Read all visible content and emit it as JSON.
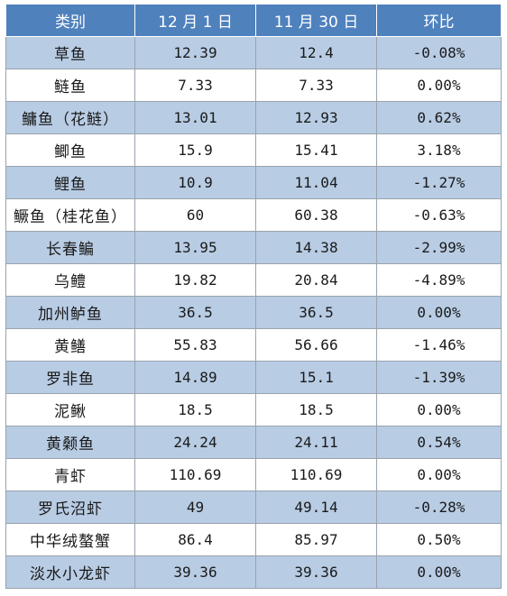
{
  "table": {
    "headers": [
      "类别",
      "12 月 1 日",
      "11 月 30 日",
      "环比"
    ],
    "rows": [
      [
        "草鱼",
        "12.39",
        "12.4",
        "-0.08%"
      ],
      [
        "鲢鱼",
        "7.33",
        "7.33",
        "0.00%"
      ],
      [
        "鳙鱼（花鲢）",
        "13.01",
        "12.93",
        "0.62%"
      ],
      [
        "鲫鱼",
        "15.9",
        "15.41",
        "3.18%"
      ],
      [
        "鲤鱼",
        "10.9",
        "11.04",
        "-1.27%"
      ],
      [
        "鳜鱼（桂花鱼）",
        "60",
        "60.38",
        "-0.63%"
      ],
      [
        "长春鳊",
        "13.95",
        "14.38",
        "-2.99%"
      ],
      [
        "乌鳢",
        "19.82",
        "20.84",
        "-4.89%"
      ],
      [
        "加州鲈鱼",
        "36.5",
        "36.5",
        "0.00%"
      ],
      [
        "黄鳝",
        "55.83",
        "56.66",
        "-1.46%"
      ],
      [
        "罗非鱼",
        "14.89",
        "15.1",
        "-1.39%"
      ],
      [
        "泥鳅",
        "18.5",
        "18.5",
        "0.00%"
      ],
      [
        "黄颡鱼",
        "24.24",
        "24.11",
        "0.54%"
      ],
      [
        "青虾",
        "110.69",
        "110.69",
        "0.00%"
      ],
      [
        "罗氏沼虾",
        "49",
        "49.14",
        "-0.28%"
      ],
      [
        "中华绒螯蟹",
        "86.4",
        "85.97",
        "0.50%"
      ],
      [
        "淡水小龙虾",
        "39.36",
        "39.36",
        "0.00%"
      ]
    ]
  },
  "colors": {
    "header_bg": "#4f81bd",
    "band_bg": "#b8cce4",
    "plain_bg": "#ffffff"
  }
}
